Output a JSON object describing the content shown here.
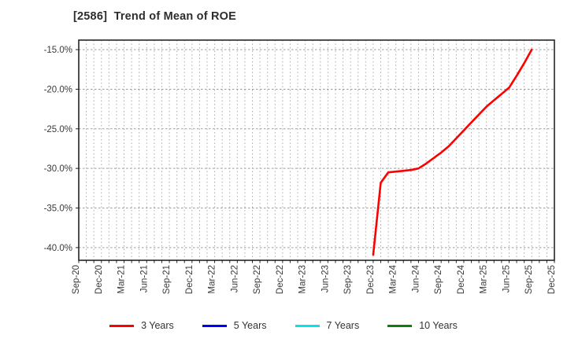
{
  "title": "[2586]  Trend of Mean of ROE",
  "colors": {
    "background": "#ffffff",
    "title_text": "#2d2d2d",
    "tick_label": "#3a3a3a",
    "plot_border": "#262626",
    "gridline": "#9c9c9c",
    "series_3y": "#ff0000",
    "series_5y": "#0000ff",
    "series_7y": "#00e5e5",
    "series_10y": "#0f7d0f"
  },
  "legend": {
    "items": [
      {
        "label": "3 Years",
        "color": "#ff0000"
      },
      {
        "label": "5 Years",
        "color": "#0000ff"
      },
      {
        "label": "7 Years",
        "color": "#00e5e5"
      },
      {
        "label": "10 Years",
        "color": "#0f7d0f"
      }
    ]
  },
  "chart_data": {
    "type": "line",
    "title": "[2586]  Trend of Mean of ROE",
    "xlabel": "",
    "ylabel": "",
    "grid": true,
    "legend_position": "bottom",
    "x_axis_start": "Sep-20",
    "x_axis_end": "Dec-25",
    "x_range_months": 63,
    "x_tick_labels": [
      "Sep-20",
      "Dec-20",
      "Mar-21",
      "Jun-21",
      "Sep-21",
      "Dec-21",
      "Mar-22",
      "Jun-22",
      "Sep-22",
      "Dec-22",
      "Mar-23",
      "Jun-23",
      "Sep-23",
      "Dec-23",
      "Mar-24",
      "Jun-24",
      "Sep-24",
      "Dec-24",
      "Mar-25",
      "Jun-25",
      "Sep-25",
      "Dec-25"
    ],
    "y_ticks": [
      -15,
      -20,
      -25,
      -30,
      -35,
      -40
    ],
    "y_tick_labels": [
      "-15.0%",
      "-20.0%",
      "-25.0%",
      "-30.0%",
      "-35.0%",
      "-40.0%"
    ],
    "ylim": [
      -41.6,
      -13.8
    ],
    "series": [
      {
        "name": "3 Years",
        "color": "#ff0000",
        "points": [
          [
            "Dec-23",
            -40.9
          ],
          [
            "Jan-24",
            -31.8
          ],
          [
            "Feb-24",
            -30.5
          ],
          [
            "Mar-24",
            -30.4
          ],
          [
            "Apr-24",
            -30.3
          ],
          [
            "May-24",
            -30.2
          ],
          [
            "Jun-24",
            -30.0
          ],
          [
            "Jul-24",
            -29.4
          ],
          [
            "Aug-24",
            -28.7
          ],
          [
            "Sep-24",
            -28.0
          ],
          [
            "Oct-24",
            -27.2
          ],
          [
            "Nov-24",
            -26.2
          ],
          [
            "Dec-24",
            -25.2
          ],
          [
            "Jan-25",
            -24.2
          ],
          [
            "Feb-25",
            -23.2
          ],
          [
            "Mar-25",
            -22.2
          ],
          [
            "Apr-25",
            -21.4
          ],
          [
            "May-25",
            -20.6
          ],
          [
            "Jun-25",
            -19.8
          ],
          [
            "Jul-25",
            -18.3
          ],
          [
            "Aug-25",
            -16.7
          ],
          [
            "Sep-25",
            -15.0
          ]
        ]
      },
      {
        "name": "5 Years",
        "color": "#0000ff",
        "points": []
      },
      {
        "name": "7 Years",
        "color": "#00e5e5",
        "points": []
      },
      {
        "name": "10 Years",
        "color": "#0f7d0f",
        "points": []
      }
    ]
  }
}
